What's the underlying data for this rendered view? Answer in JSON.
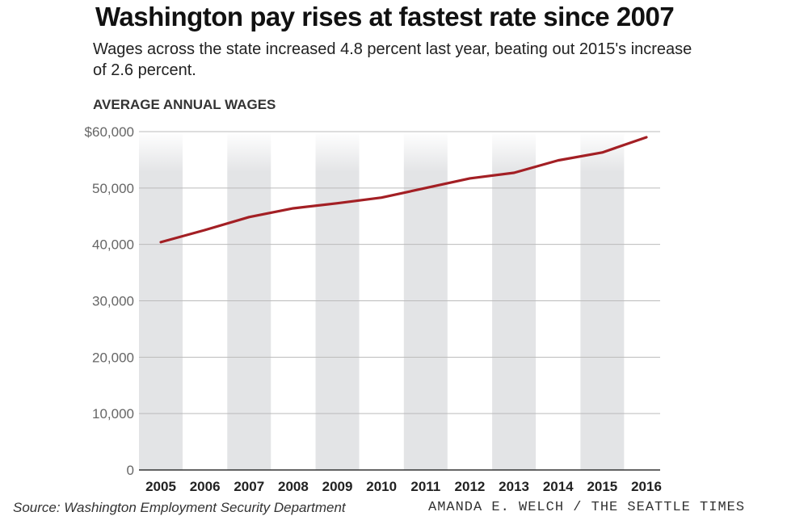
{
  "title": "Washington pay rises at fastest rate since 2007",
  "subtitle": "Wages across the state increased 4.8 percent last year, beating out 2015's increase of 2.6 percent.",
  "source": "Source: Washington Employment Security Department",
  "credit": "AMANDA E. WELCH / THE SEATTLE TIMES",
  "chart_data": {
    "type": "line",
    "title": "",
    "ylabel": "AVERAGE ANNUAL WAGES",
    "xlabel": "",
    "categories": [
      "2005",
      "2006",
      "2007",
      "2008",
      "2009",
      "2010",
      "2011",
      "2012",
      "2013",
      "2014",
      "2015",
      "2016"
    ],
    "values": [
      40400,
      42550,
      44850,
      46400,
      47300,
      48300,
      50000,
      51700,
      52700,
      54900,
      56300,
      59000
    ],
    "ylim": [
      0,
      60000
    ],
    "yticks": [
      0,
      10000,
      20000,
      30000,
      40000,
      50000,
      60000
    ],
    "ytick_labels": [
      "0",
      "10,000",
      "20,000",
      "30,000",
      "40,000",
      "50,000",
      "$60,000"
    ],
    "grid": true,
    "alternating_bands": true,
    "colors": {
      "line": "#a31f24",
      "band": "#e3e4e6",
      "grid": "#bbbbbb"
    }
  }
}
